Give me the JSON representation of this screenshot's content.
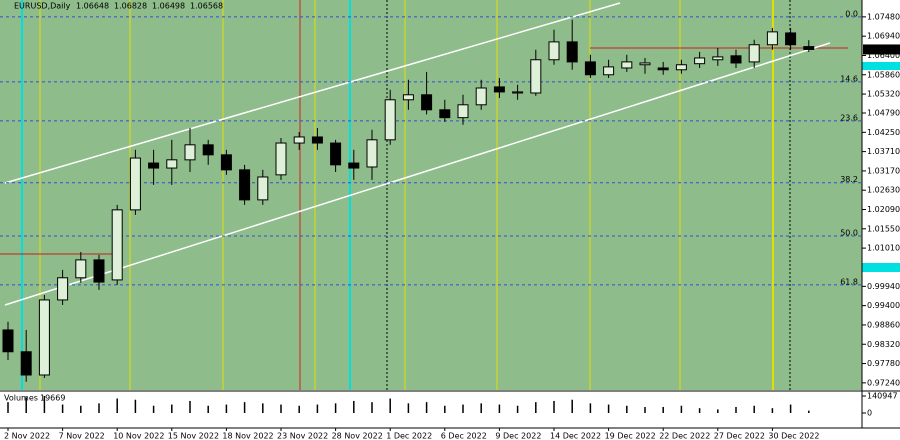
{
  "chart_data": {
    "type": "candlestick",
    "title": "EURUSD,Daily",
    "categories": [
      "2 Nov 2022",
      null,
      null,
      "7 Nov 2022",
      null,
      null,
      "10 Nov 2022",
      null,
      null,
      "15 Nov 2022",
      null,
      null,
      "18 Nov 2022",
      null,
      null,
      "23 Nov 2022",
      null,
      null,
      "28 Nov 2022",
      null,
      null,
      "1 Dec 2022",
      null,
      null,
      "6 Dec 2022",
      null,
      null,
      "9 Dec 2022",
      null,
      null,
      "14 Dec 2022",
      null,
      null,
      "19 Dec 2022",
      null,
      null,
      "22 Dec 2022",
      null,
      null,
      "27 Dec 2022",
      null,
      null,
      "30 Dec 2022",
      null,
      null
    ],
    "open": [
      0.9872,
      0.9811,
      0.9746,
      0.9956,
      1.0018,
      1.0068,
      1.0012,
      1.0208,
      1.0339,
      1.0325,
      1.0348,
      1.039,
      1.0362,
      1.032,
      1.0236,
      1.0306,
      1.0395,
      1.0412,
      1.0395,
      1.0339,
      1.0328,
      1.0404,
      1.0516,
      1.053,
      1.0488,
      1.0466,
      1.0502,
      1.0552,
      1.0535,
      1.0535,
      1.0628,
      1.0678,
      1.0622,
      1.0586,
      1.0605,
      1.0614,
      1.0605,
      1.06,
      1.0617,
      1.0628,
      1.0639,
      1.0622,
      1.067,
      1.0703,
      1.06648
    ],
    "high": [
      0.9895,
      0.9872,
      0.997,
      1.004,
      1.009,
      1.0082,
      1.0222,
      1.0376,
      1.0376,
      1.0404,
      1.0437,
      1.0404,
      1.0376,
      1.0334,
      1.032,
      1.0409,
      1.0426,
      1.0437,
      1.0404,
      1.0376,
      1.0432,
      1.0544,
      1.0572,
      1.0594,
      1.0516,
      1.053,
      1.0572,
      1.0577,
      1.0558,
      1.0656,
      1.0712,
      1.074,
      1.0642,
      1.0628,
      1.0642,
      1.0633,
      1.0622,
      1.0628,
      1.065,
      1.0661,
      1.0656,
      1.0684,
      1.0717,
      1.0717,
      1.06828
    ],
    "low": [
      0.9788,
      0.9727,
      0.9738,
      0.9942,
      1.0004,
      0.9984,
      0.9998,
      1.0194,
      1.0278,
      1.0278,
      1.0314,
      1.0334,
      1.0306,
      1.0222,
      1.0222,
      1.0292,
      1.0376,
      1.0376,
      1.0314,
      1.0292,
      1.0292,
      1.039,
      1.0488,
      1.0475,
      1.0454,
      1.0446,
      1.0488,
      1.0521,
      1.0516,
      1.0527,
      1.0614,
      1.06,
      1.0577,
      1.0577,
      1.0594,
      1.0589,
      1.0586,
      1.0589,
      1.0605,
      1.0611,
      1.0605,
      1.0605,
      1.0656,
      1.0656,
      1.06498
    ],
    "close": [
      0.9811,
      0.9746,
      0.9956,
      1.0018,
      1.0068,
      1.0006,
      1.0208,
      1.0353,
      1.0325,
      1.0348,
      1.039,
      1.0362,
      1.032,
      1.0236,
      1.03,
      1.0395,
      1.0412,
      1.0395,
      1.0334,
      1.0325,
      1.0404,
      1.0516,
      1.053,
      1.0488,
      1.0466,
      1.0502,
      1.0549,
      1.0538,
      1.0538,
      1.0628,
      1.0678,
      1.0622,
      1.0586,
      1.0608,
      1.0622,
      1.0619,
      1.06,
      1.0614,
      1.0633,
      1.0636,
      1.0619,
      1.067,
      1.0706,
      1.067,
      1.06568
    ],
    "volume_title": "Volumes",
    "volume": [
      90000,
      130000,
      140947,
      70000,
      60000,
      80000,
      120000,
      110000,
      60000,
      70000,
      100000,
      60000,
      70000,
      90000,
      80000,
      70000,
      60000,
      70000,
      80000,
      100000,
      90000,
      120000,
      80000,
      90000,
      60000,
      70000,
      80000,
      70000,
      60000,
      90000,
      100000,
      110000,
      80000,
      70000,
      60000,
      50000,
      50000,
      60000,
      40000,
      30000,
      50000,
      60000,
      40000,
      70000,
      19669
    ],
    "ylim": [
      0.9704,
      1.0784
    ],
    "yticks": [
      {
        "value": 1.0748,
        "label": "1.07480"
      },
      {
        "value": 1.0694,
        "label": "1.06940"
      },
      {
        "value": 1.064,
        "label": "1.06400"
      },
      {
        "value": 1.0586,
        "label": "1.05860"
      },
      {
        "value": 1.0532,
        "label": "1.05320"
      },
      {
        "value": 1.0479,
        "label": "1.04790"
      },
      {
        "value": 1.0425,
        "label": "1.04250"
      },
      {
        "value": 1.0371,
        "label": "1.03710"
      },
      {
        "value": 1.0317,
        "label": "1.03170"
      },
      {
        "value": 1.0263,
        "label": "1.02630"
      },
      {
        "value": 1.0209,
        "label": "1.02090"
      },
      {
        "value": 1.0155,
        "label": "1.01550"
      },
      {
        "value": 1.0101,
        "label": "1.01010"
      },
      {
        "value": 0.9994,
        "label": "0.99940"
      },
      {
        "value": 0.994,
        "label": "0.99400"
      },
      {
        "value": 0.9886,
        "label": "0.98860"
      },
      {
        "value": 0.9832,
        "label": "0.98320"
      },
      {
        "value": 0.9778,
        "label": "0.97780"
      },
      {
        "value": 0.9724,
        "label": "0.97240"
      }
    ],
    "vlim": [
      0,
      140947
    ],
    "vticks": [
      140947,
      0
    ],
    "price_label": {
      "value": 1.06568,
      "label": "1.06568"
    },
    "fib_levels": [
      {
        "value": 1.0748,
        "label": "0.0"
      },
      {
        "value": 1.0566,
        "label": "14.6"
      },
      {
        "value": 1.0457,
        "label": "23.6"
      },
      {
        "value": 1.0284,
        "label": "38.2"
      },
      {
        "value": 1.0135,
        "label": "50.0"
      },
      {
        "value": 0.9998,
        "label": "61.8"
      }
    ],
    "up_color": "#dff0d8",
    "down_color": "#000000",
    "background": "#8fbc8b"
  }
}
